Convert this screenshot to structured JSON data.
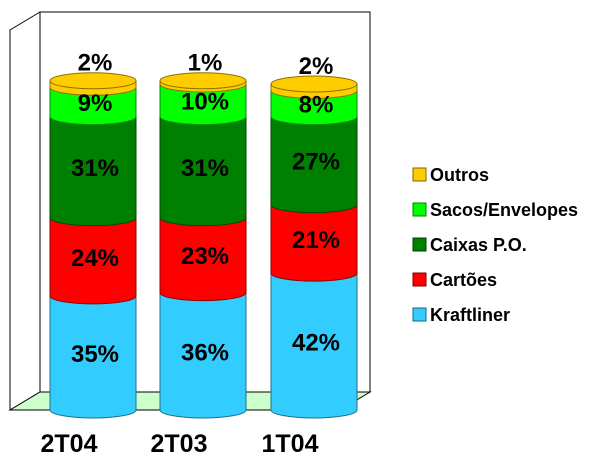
{
  "chart_data": {
    "type": "bar",
    "stacked": true,
    "percent_stacked": true,
    "style": "3d-cylinder",
    "categories": [
      "2T04",
      "2T03",
      "1T04"
    ],
    "series": [
      {
        "name": "Kraftliner",
        "values": [
          35,
          36,
          42
        ],
        "labels": [
          "35%",
          "36%",
          "42%"
        ]
      },
      {
        "name": "Cartões",
        "values": [
          24,
          23,
          21
        ],
        "labels": [
          "24%",
          "23%",
          "21%"
        ]
      },
      {
        "name": "Caixas P.O.",
        "values": [
          31,
          31,
          27
        ],
        "labels": [
          "31%",
          "31%",
          "27%"
        ]
      },
      {
        "name": "Sacos/Envelopes",
        "values": [
          9,
          10,
          8
        ],
        "labels": [
          "9%",
          "10%",
          "8%"
        ]
      },
      {
        "name": "Outros",
        "values": [
          2,
          1,
          2
        ],
        "labels": [
          "2%",
          "1%",
          "2%"
        ]
      }
    ],
    "ylim": [
      0,
      100
    ],
    "grid": false,
    "legend_position": "right",
    "legend_order": [
      "Outros",
      "Sacos/Envelopes",
      "Caixas P.O.",
      "Cartões",
      "Kraftliner"
    ],
    "colors": {
      "Kraftliner": "#33ccff",
      "Cartões": "#ff0000",
      "Caixas P.O.": "#008000",
      "Sacos/Envelopes": "#00ff00",
      "Outros": "#ffcc00",
      "floor": "#ccffcc"
    }
  }
}
